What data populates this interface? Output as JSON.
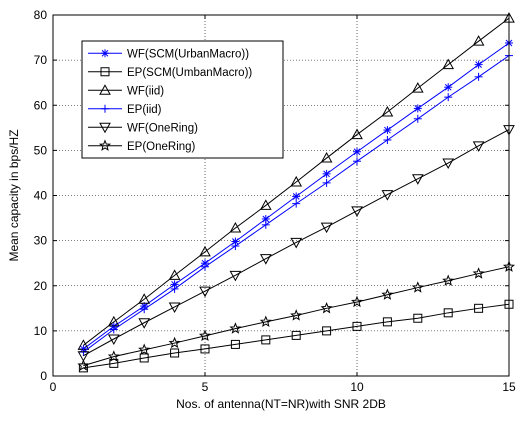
{
  "chart_data": {
    "type": "line",
    "title": "",
    "xlabel": "Nos. of antenna(NT=NR)with SNR 2DB",
    "ylabel": "Mean capacity in bps/HZ",
    "xlim": [
      0,
      15
    ],
    "ylim": [
      0,
      80
    ],
    "xticks": [
      0,
      5,
      10,
      15
    ],
    "yticks": [
      0,
      10,
      20,
      30,
      40,
      50,
      60,
      70,
      80
    ],
    "grid": true,
    "legend_position": "top-left",
    "x": [
      1,
      2,
      3,
      4,
      5,
      6,
      7,
      8,
      9,
      10,
      11,
      12,
      13,
      14,
      15
    ],
    "series": [
      {
        "name": "WF(SCM(UrbanMacro))",
        "color": "#0000ff",
        "marker": "asterisk",
        "values": [
          6.0,
          11.0,
          15.5,
          20.3,
          25.0,
          29.8,
          34.8,
          39.8,
          44.8,
          49.7,
          54.5,
          59.3,
          64.0,
          69.0,
          73.8
        ]
      },
      {
        "name": "EP(SCM(UmbanMacro))",
        "color": "#000000",
        "marker": "square",
        "values": [
          1.8,
          2.8,
          4.0,
          5.1,
          6.0,
          7.0,
          8.0,
          9.0,
          10.0,
          11.0,
          12.0,
          12.8,
          14.0,
          15.0,
          15.9
        ]
      },
      {
        "name": "WF(iid)",
        "color": "#000000",
        "marker": "triangle-up",
        "values": [
          6.8,
          12.0,
          17.0,
          22.3,
          27.5,
          32.8,
          37.8,
          43.0,
          48.3,
          53.5,
          58.5,
          63.8,
          69.0,
          74.2,
          79.3
        ]
      },
      {
        "name": "EP(iid)",
        "color": "#0000ff",
        "marker": "plus",
        "values": [
          5.3,
          10.3,
          14.8,
          19.3,
          24.2,
          28.8,
          33.5,
          38.2,
          42.8,
          47.6,
          52.3,
          57.0,
          61.8,
          66.3,
          71.0
        ]
      },
      {
        "name": "WF(OneRing)",
        "color": "#000000",
        "marker": "triangle-down",
        "values": [
          4.5,
          8.2,
          11.8,
          15.3,
          18.8,
          22.3,
          26.0,
          29.6,
          33.0,
          36.6,
          40.2,
          43.7,
          47.2,
          51.0,
          54.6
        ]
      },
      {
        "name": "EP(OneRing)",
        "color": "#000000",
        "marker": "star",
        "values": [
          2.3,
          4.3,
          5.8,
          7.3,
          8.9,
          10.5,
          12.0,
          13.4,
          15.0,
          16.4,
          18.0,
          19.6,
          21.1,
          22.7,
          24.2
        ]
      }
    ]
  }
}
